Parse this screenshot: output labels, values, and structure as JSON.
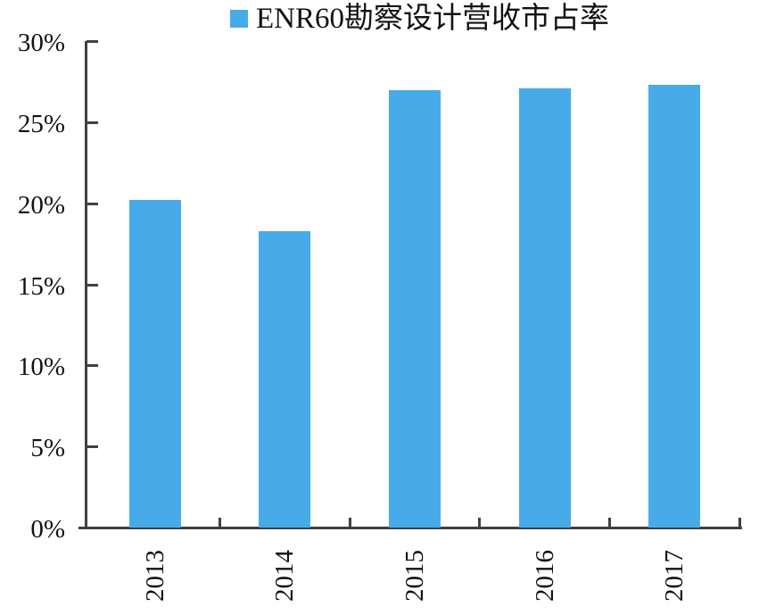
{
  "chart_data": {
    "type": "bar",
    "title": "ENR60勘察设计营收市占率",
    "legend": {
      "position": "top",
      "entries": [
        {
          "label": "ENR60勘察设计营收市占率",
          "swatch_color": "#47ABEA"
        }
      ]
    },
    "categories": [
      "2013",
      "2014",
      "2015",
      "2016",
      "2017"
    ],
    "series": [
      {
        "name": "ENR60勘察设计营收市占率",
        "values": [
          20.2,
          18.3,
          27.0,
          27.1,
          27.3
        ]
      }
    ],
    "unit": "%",
    "xlabel": "",
    "ylabel": "",
    "ylim": [
      0,
      30
    ],
    "ytick_step": 5,
    "ytick_labels": [
      "0%",
      "5%",
      "10%",
      "15%",
      "20%",
      "25%",
      "30%"
    ],
    "x_label_rotation": -90,
    "grid": false,
    "bar_color": "#47ABEA",
    "axis_color": "#404040",
    "text_color": "#111111",
    "background_color": "#ffffff"
  }
}
